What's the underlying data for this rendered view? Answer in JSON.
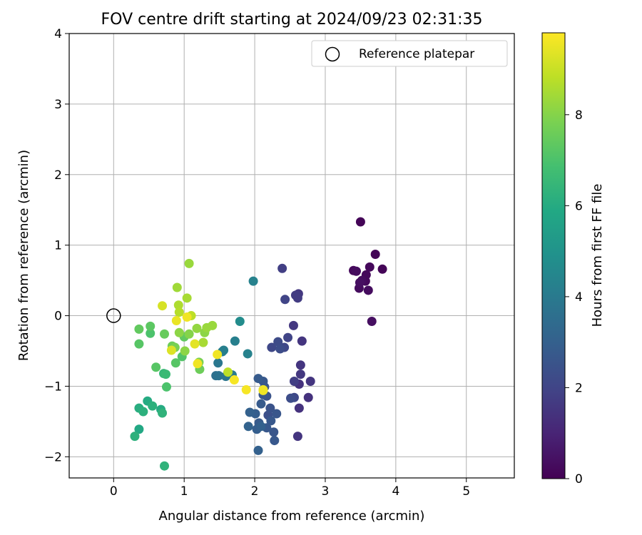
{
  "chart_data": {
    "type": "scatter",
    "title": "FOV centre drift starting at 2024/09/23 02:31:35",
    "xlabel": "Angular distance from reference (arcmin)",
    "ylabel": "Rotation from reference (arcmin)",
    "xlim": [
      -0.63,
      5.68
    ],
    "ylim": [
      -2.3,
      4.0
    ],
    "xticks": [
      0,
      1,
      2,
      3,
      4,
      5
    ],
    "yticks": [
      -2,
      -1,
      0,
      1,
      2,
      3,
      4
    ],
    "grid": true,
    "legend": {
      "placement": "top-right",
      "entries": [
        {
          "label": "Reference platepar",
          "marker": "open-circle"
        }
      ]
    },
    "reference_point": {
      "x": 0,
      "y": 0
    },
    "colorbar": {
      "label": "Hours from first FF file",
      "colormap": "viridis",
      "range": [
        0,
        9.8
      ],
      "ticks": [
        0,
        2,
        4,
        6,
        8
      ]
    },
    "points": [
      {
        "x": 3.5,
        "y": 1.33,
        "c": 0.1
      },
      {
        "x": 3.71,
        "y": 0.87,
        "c": 0.1
      },
      {
        "x": 3.63,
        "y": 0.69,
        "c": 0.2
      },
      {
        "x": 3.81,
        "y": 0.66,
        "c": 0.1
      },
      {
        "x": 3.4,
        "y": 0.64,
        "c": 0.2
      },
      {
        "x": 3.44,
        "y": 0.63,
        "c": 0.3
      },
      {
        "x": 3.58,
        "y": 0.58,
        "c": 0.2
      },
      {
        "x": 3.52,
        "y": 0.5,
        "c": 0.3
      },
      {
        "x": 3.49,
        "y": 0.47,
        "c": 0.4
      },
      {
        "x": 3.57,
        "y": 0.49,
        "c": 0.2
      },
      {
        "x": 3.48,
        "y": 0.39,
        "c": 0.3
      },
      {
        "x": 3.61,
        "y": 0.36,
        "c": 0.3
      },
      {
        "x": 3.66,
        "y": -0.08,
        "c": 0.4
      },
      {
        "x": 2.39,
        "y": 0.67,
        "c": 1.8
      },
      {
        "x": 2.62,
        "y": 0.31,
        "c": 1.6
      },
      {
        "x": 2.58,
        "y": 0.29,
        "c": 1.7
      },
      {
        "x": 2.61,
        "y": 0.25,
        "c": 1.7
      },
      {
        "x": 2.43,
        "y": 0.23,
        "c": 2.0
      },
      {
        "x": 2.55,
        "y": -0.14,
        "c": 1.6
      },
      {
        "x": 2.47,
        "y": -0.31,
        "c": 2.0
      },
      {
        "x": 2.33,
        "y": -0.37,
        "c": 2.2
      },
      {
        "x": 2.67,
        "y": -0.36,
        "c": 1.5
      },
      {
        "x": 2.24,
        "y": -0.45,
        "c": 2.1
      },
      {
        "x": 2.36,
        "y": -0.47,
        "c": 2.3
      },
      {
        "x": 2.42,
        "y": -0.45,
        "c": 2.1
      },
      {
        "x": 2.65,
        "y": -0.7,
        "c": 1.5
      },
      {
        "x": 2.65,
        "y": -0.83,
        "c": 1.6
      },
      {
        "x": 2.79,
        "y": -0.93,
        "c": 1.5
      },
      {
        "x": 2.56,
        "y": -0.93,
        "c": 1.8
      },
      {
        "x": 2.63,
        "y": -0.97,
        "c": 1.4
      },
      {
        "x": 2.51,
        "y": -1.17,
        "c": 2.3
      },
      {
        "x": 2.56,
        "y": -1.16,
        "c": 2.1
      },
      {
        "x": 2.76,
        "y": -1.16,
        "c": 1.4
      },
      {
        "x": 2.63,
        "y": -1.31,
        "c": 1.4
      },
      {
        "x": 2.61,
        "y": -1.71,
        "c": 1.5
      },
      {
        "x": 2.05,
        "y": -0.89,
        "c": 2.8
      },
      {
        "x": 2.12,
        "y": -0.93,
        "c": 2.7
      },
      {
        "x": 2.14,
        "y": -1.01,
        "c": 2.6
      },
      {
        "x": 2.12,
        "y": -1.12,
        "c": 2.6
      },
      {
        "x": 2.17,
        "y": -1.14,
        "c": 2.5
      },
      {
        "x": 2.09,
        "y": -1.25,
        "c": 2.8
      },
      {
        "x": 2.22,
        "y": -1.31,
        "c": 2.5
      },
      {
        "x": 1.93,
        "y": -1.37,
        "c": 3.0
      },
      {
        "x": 2.01,
        "y": -1.39,
        "c": 2.9
      },
      {
        "x": 2.19,
        "y": -1.41,
        "c": 2.4
      },
      {
        "x": 2.31,
        "y": -1.39,
        "c": 2.6
      },
      {
        "x": 2.23,
        "y": -1.49,
        "c": 2.7
      },
      {
        "x": 2.06,
        "y": -1.52,
        "c": 2.8
      },
      {
        "x": 2.09,
        "y": -1.57,
        "c": 3.0
      },
      {
        "x": 1.91,
        "y": -1.57,
        "c": 3.1
      },
      {
        "x": 2.03,
        "y": -1.61,
        "c": 2.9
      },
      {
        "x": 2.17,
        "y": -1.59,
        "c": 2.7
      },
      {
        "x": 2.27,
        "y": -1.65,
        "c": 2.6
      },
      {
        "x": 2.28,
        "y": -1.77,
        "c": 2.7
      },
      {
        "x": 2.05,
        "y": -1.91,
        "c": 3.0
      },
      {
        "x": 1.98,
        "y": 0.49,
        "c": 4.3
      },
      {
        "x": 1.79,
        "y": -0.08,
        "c": 4.7
      },
      {
        "x": 1.72,
        "y": -0.36,
        "c": 4.2
      },
      {
        "x": 1.56,
        "y": -0.49,
        "c": 4.2
      },
      {
        "x": 1.54,
        "y": -0.51,
        "c": 4.1
      },
      {
        "x": 1.9,
        "y": -0.54,
        "c": 4.3
      },
      {
        "x": 1.48,
        "y": -0.67,
        "c": 3.9
      },
      {
        "x": 1.45,
        "y": -0.85,
        "c": 3.6
      },
      {
        "x": 1.49,
        "y": -0.85,
        "c": 3.7
      },
      {
        "x": 1.59,
        "y": -0.86,
        "c": 3.8
      },
      {
        "x": 1.68,
        "y": -0.84,
        "c": 4.0
      },
      {
        "x": 0.36,
        "y": -0.19,
        "c": 7.4
      },
      {
        "x": 0.36,
        "y": -0.4,
        "c": 7.2
      },
      {
        "x": 0.52,
        "y": -0.15,
        "c": 7.3
      },
      {
        "x": 0.52,
        "y": -0.25,
        "c": 7.0
      },
      {
        "x": 0.6,
        "y": -0.73,
        "c": 7.2
      },
      {
        "x": 0.72,
        "y": -0.26,
        "c": 7.5
      },
      {
        "x": 0.71,
        "y": -0.82,
        "c": 6.5
      },
      {
        "x": 0.74,
        "y": -0.83,
        "c": 6.6
      },
      {
        "x": 0.75,
        "y": -1.01,
        "c": 7.0
      },
      {
        "x": 0.48,
        "y": -1.21,
        "c": 6.0
      },
      {
        "x": 0.55,
        "y": -1.28,
        "c": 6.2
      },
      {
        "x": 0.36,
        "y": -1.31,
        "c": 6.1
      },
      {
        "x": 0.42,
        "y": -1.36,
        "c": 6.2
      },
      {
        "x": 0.67,
        "y": -1.33,
        "c": 6.0
      },
      {
        "x": 0.69,
        "y": -1.38,
        "c": 6.3
      },
      {
        "x": 0.36,
        "y": -1.61,
        "c": 5.9
      },
      {
        "x": 0.3,
        "y": -1.71,
        "c": 6.2
      },
      {
        "x": 0.72,
        "y": -2.13,
        "c": 6.3
      },
      {
        "x": 0.83,
        "y": -0.43,
        "c": 7.6
      },
      {
        "x": 0.87,
        "y": -0.45,
        "c": 7.8
      },
      {
        "x": 0.88,
        "y": -0.67,
        "c": 7.2
      },
      {
        "x": 0.97,
        "y": -0.58,
        "c": 7.1
      },
      {
        "x": 1.01,
        "y": -0.5,
        "c": 8.1
      },
      {
        "x": 1.0,
        "y": -0.3,
        "c": 7.4
      },
      {
        "x": 0.93,
        "y": -0.24,
        "c": 8.1
      },
      {
        "x": 1.07,
        "y": -0.26,
        "c": 8.0
      },
      {
        "x": 1.18,
        "y": -0.18,
        "c": 8.2
      },
      {
        "x": 1.29,
        "y": -0.24,
        "c": 8.1
      },
      {
        "x": 1.32,
        "y": -0.17,
        "c": 8.3
      },
      {
        "x": 1.4,
        "y": -0.14,
        "c": 8.3
      },
      {
        "x": 1.27,
        "y": -0.38,
        "c": 8.5
      },
      {
        "x": 1.21,
        "y": -0.66,
        "c": 7.8
      },
      {
        "x": 1.22,
        "y": -0.76,
        "c": 7.6
      },
      {
        "x": 1.62,
        "y": -0.8,
        "c": 8.8
      },
      {
        "x": 0.9,
        "y": 0.4,
        "c": 8.4
      },
      {
        "x": 1.04,
        "y": 0.25,
        "c": 8.5
      },
      {
        "x": 1.07,
        "y": 0.74,
        "c": 8.3
      },
      {
        "x": 0.92,
        "y": 0.15,
        "c": 8.6
      },
      {
        "x": 0.93,
        "y": 0.05,
        "c": 8.7
      },
      {
        "x": 1.1,
        "y": 0.0,
        "c": 8.8
      },
      {
        "x": 0.69,
        "y": 0.14,
        "c": 9.2
      },
      {
        "x": 0.89,
        "y": -0.07,
        "c": 9.5
      },
      {
        "x": 1.04,
        "y": -0.02,
        "c": 9.6
      },
      {
        "x": 0.82,
        "y": -0.49,
        "c": 9.3
      },
      {
        "x": 1.15,
        "y": -0.4,
        "c": 9.4
      },
      {
        "x": 1.19,
        "y": -0.68,
        "c": 9.6
      },
      {
        "x": 1.47,
        "y": -0.55,
        "c": 9.6
      },
      {
        "x": 1.71,
        "y": -0.91,
        "c": 9.7
      },
      {
        "x": 1.88,
        "y": -1.05,
        "c": 9.7
      },
      {
        "x": 2.12,
        "y": -1.06,
        "c": 9.6
      },
      {
        "x": 2.12,
        "y": -1.05,
        "c": 9.5
      }
    ]
  }
}
